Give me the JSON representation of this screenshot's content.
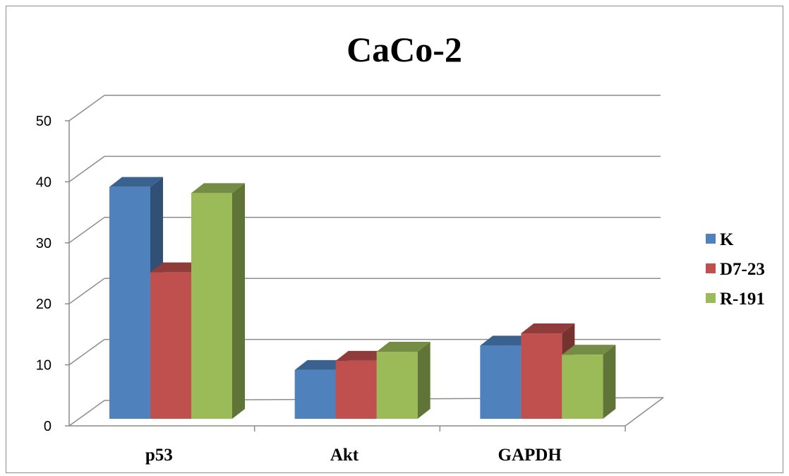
{
  "chart_data": {
    "type": "bar",
    "title": "CaCo-2",
    "categories": [
      "p53",
      "Akt",
      "GAPDH"
    ],
    "series": [
      {
        "name": "K",
        "values": [
          38,
          8,
          12
        ],
        "color": "#4f81bd"
      },
      {
        "name": "D7-23",
        "values": [
          24,
          9.5,
          14
        ],
        "color": "#c0504d"
      },
      {
        "name": "R-191",
        "values": [
          37,
          11,
          10.5
        ],
        "color": "#9bbb59"
      }
    ],
    "y_ticks": [
      "0",
      "10",
      "20",
      "30",
      "40",
      "50"
    ],
    "ylim": [
      0,
      50
    ],
    "grid": true,
    "legend": "right",
    "three_d": true
  }
}
